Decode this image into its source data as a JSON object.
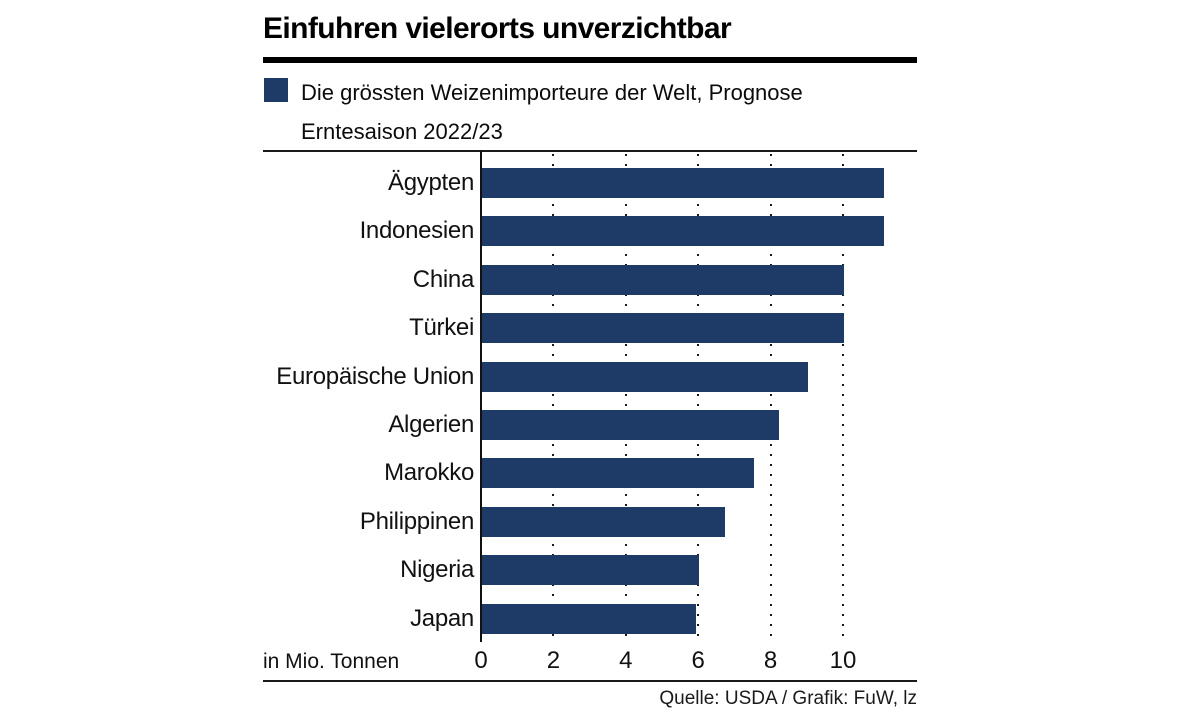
{
  "title": "Einfuhren vielerorts unverzichtbar",
  "legend": {
    "line1": "Die grössten Weizenimporteure der Welt, Prognose",
    "line2": "Erntesaison 2022/23"
  },
  "source": "Quelle: USDA / Grafik: FuW, lz",
  "colors": {
    "bar": "#1e3a66",
    "axis": "#111111",
    "rule": "#000000"
  },
  "chart_data": {
    "type": "bar",
    "orientation": "horizontal",
    "title": "Die grössten Weizenimporteure der Welt, Prognose Erntesaison 2022/23",
    "categories": [
      "Ägypten",
      "Indonesien",
      "China",
      "Türkei",
      "Europäische Union",
      "Algerien",
      "Marokko",
      "Philippinen",
      "Nigeria",
      "Japan"
    ],
    "values": [
      11.1,
      11.1,
      10.0,
      10.0,
      9.0,
      8.2,
      7.5,
      6.7,
      6.0,
      5.9
    ],
    "unit": "Mio. Tonnen",
    "xlabel": "in Mio. Tonnen",
    "xlim": [
      0,
      12
    ],
    "xticks": [
      0,
      2,
      4,
      6,
      8,
      10
    ],
    "grid": "dotted-vertical-behind-bars",
    "legend_position": "top-left",
    "bar_color": "#1e3a66"
  }
}
